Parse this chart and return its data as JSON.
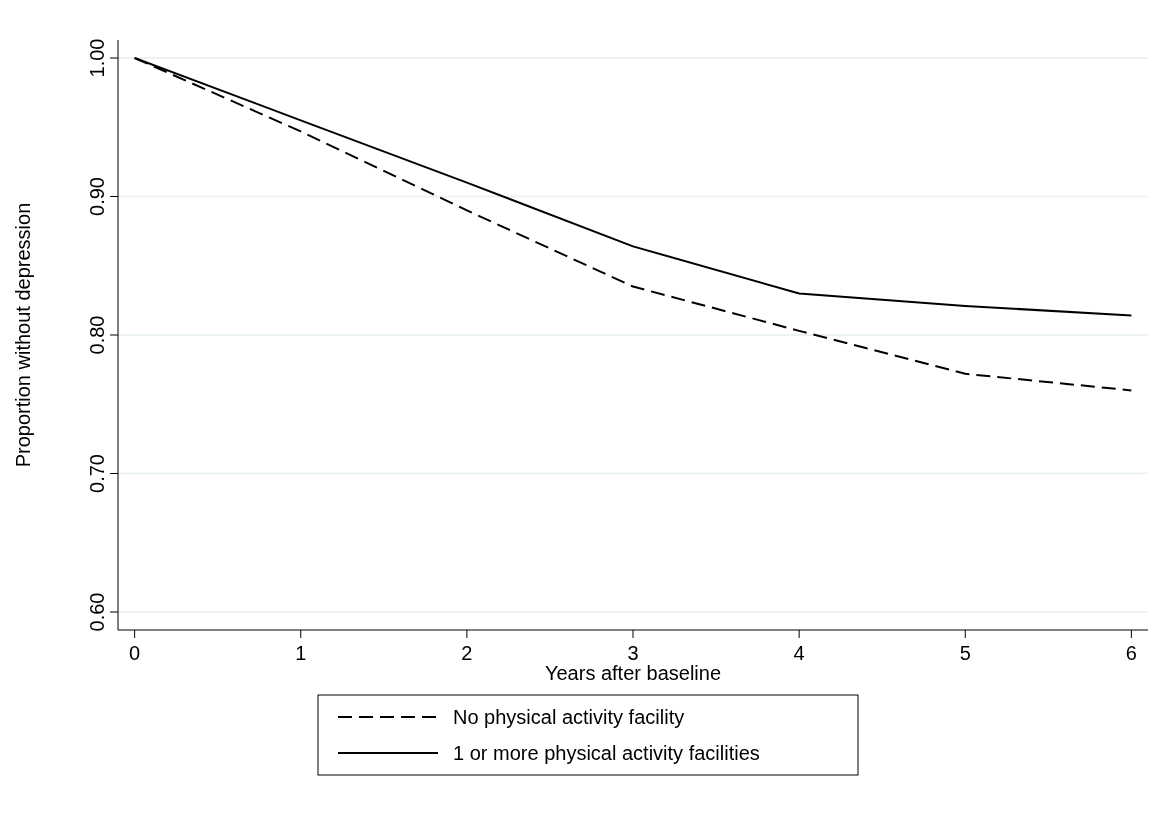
{
  "chart_data": {
    "type": "line",
    "xlabel": "Years after baseline",
    "ylabel": "Proportion without depression",
    "x": [
      0,
      1,
      2,
      3,
      4,
      5,
      6
    ],
    "series": [
      {
        "name": "No physical activity facility",
        "color": "#000000",
        "line_style": "dashed",
        "values": [
          1.0,
          0.947,
          0.89,
          0.835,
          0.803,
          0.772,
          0.76
        ]
      },
      {
        "name": "1 or more physical activity facilities",
        "color": "#000000",
        "line_style": "solid",
        "values": [
          1.0,
          0.955,
          0.91,
          0.864,
          0.83,
          0.821,
          0.814
        ]
      }
    ],
    "xlim": [
      -0.1,
      6.1
    ],
    "xticks": [
      0,
      1,
      2,
      3,
      4,
      5,
      6
    ],
    "ylim": [
      0.587,
      1.013
    ],
    "yticks": [
      {
        "value": 0.6,
        "label": "0.60"
      },
      {
        "value": 0.7,
        "label": "0.70"
      },
      {
        "value": 0.8,
        "label": "0.80"
      },
      {
        "value": 0.9,
        "label": "0.90"
      },
      {
        "value": 1.0,
        "label": "1.00"
      }
    ],
    "grid": "y",
    "legend": "bottom"
  }
}
